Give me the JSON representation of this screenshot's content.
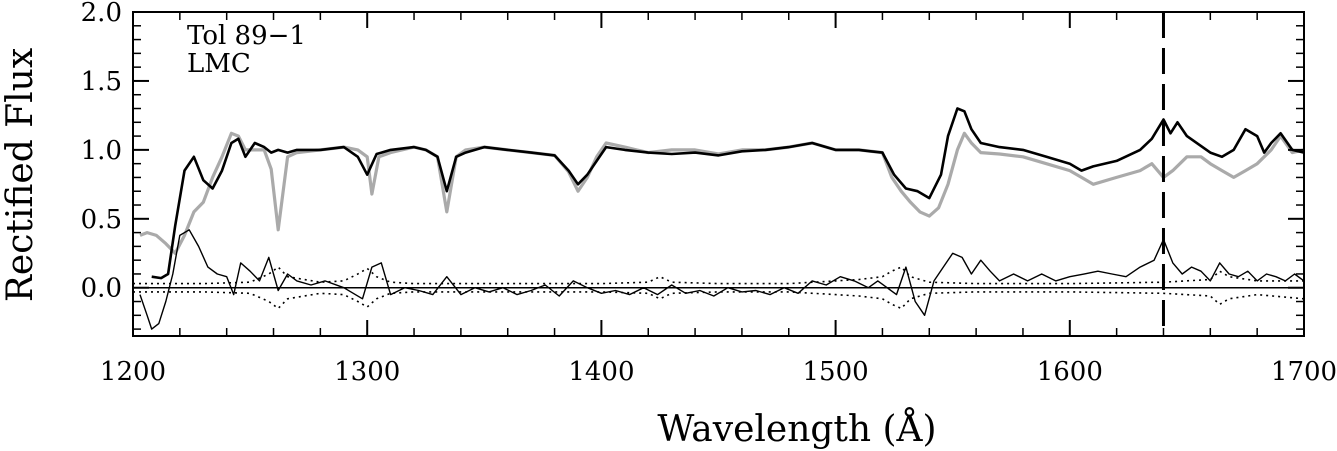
{
  "chart_data": {
    "type": "line",
    "xlabel": "Wavelength (Å)",
    "ylabel": "Rectified Flux",
    "xlim": [
      1200,
      1700
    ],
    "ylim": [
      -0.35,
      2.0
    ],
    "x_ticks": [
      "1200",
      "1300",
      "1400",
      "1500",
      "1600",
      "1700"
    ],
    "y_ticks": [
      "0.0",
      "0.5",
      "1.0",
      "1.5",
      "2.0"
    ],
    "annotations": [
      "Tol 89−1",
      "LMC"
    ],
    "reference_line_x": 1640,
    "colors": {
      "object": "#000000",
      "template": "#aaaaaa",
      "residual": "#000000"
    },
    "series": [
      {
        "key": "object",
        "style": "thick-black",
        "x": [
          1208,
          1212,
          1215,
          1218,
          1222,
          1226,
          1230,
          1234,
          1238,
          1242,
          1245,
          1248,
          1252,
          1256,
          1259,
          1262,
          1266,
          1270,
          1280,
          1290,
          1296,
          1300,
          1304,
          1310,
          1320,
          1325,
          1330,
          1334,
          1338,
          1342,
          1350,
          1360,
          1370,
          1380,
          1386,
          1390,
          1394,
          1398,
          1402,
          1410,
          1420,
          1430,
          1440,
          1450,
          1460,
          1470,
          1480,
          1490,
          1500,
          1510,
          1515,
          1520,
          1525,
          1530,
          1535,
          1540,
          1545,
          1548,
          1552,
          1555,
          1558,
          1562,
          1570,
          1580,
          1590,
          1600,
          1605,
          1610,
          1620,
          1630,
          1635,
          1640,
          1643,
          1646,
          1650,
          1660,
          1665,
          1670,
          1675,
          1680,
          1683,
          1686,
          1690,
          1695,
          1700
        ],
        "y": [
          0.08,
          0.07,
          0.1,
          0.45,
          0.85,
          0.95,
          0.78,
          0.72,
          0.85,
          1.05,
          1.08,
          0.95,
          1.05,
          1.02,
          0.98,
          1.0,
          0.98,
          1.0,
          1.0,
          1.02,
          0.95,
          0.82,
          0.97,
          1.0,
          1.02,
          1.0,
          0.95,
          0.7,
          0.95,
          0.98,
          1.02,
          1.0,
          0.98,
          0.96,
          0.85,
          0.75,
          0.82,
          0.92,
          1.02,
          1.0,
          0.98,
          0.97,
          0.98,
          0.96,
          0.99,
          1.0,
          1.02,
          1.05,
          1.0,
          1.0,
          0.99,
          0.98,
          0.82,
          0.72,
          0.7,
          0.65,
          0.82,
          1.1,
          1.3,
          1.28,
          1.15,
          1.05,
          1.02,
          1.0,
          0.95,
          0.9,
          0.85,
          0.88,
          0.92,
          1.0,
          1.08,
          1.22,
          1.12,
          1.2,
          1.1,
          0.98,
          0.95,
          1.0,
          1.15,
          1.1,
          0.98,
          1.05,
          1.12,
          1.0,
          0.98
        ]
      },
      {
        "key": "template",
        "style": "thick-gray",
        "x": [
          1203,
          1206,
          1210,
          1214,
          1218,
          1222,
          1226,
          1230,
          1234,
          1238,
          1242,
          1245,
          1248,
          1252,
          1256,
          1259,
          1262,
          1266,
          1270,
          1280,
          1290,
          1296,
          1300,
          1302,
          1305,
          1310,
          1320,
          1325,
          1330,
          1334,
          1338,
          1342,
          1350,
          1360,
          1370,
          1380,
          1386,
          1390,
          1394,
          1398,
          1402,
          1410,
          1420,
          1430,
          1440,
          1450,
          1460,
          1470,
          1480,
          1490,
          1500,
          1510,
          1520,
          1524,
          1528,
          1532,
          1536,
          1540,
          1544,
          1548,
          1552,
          1555,
          1558,
          1562,
          1570,
          1580,
          1590,
          1600,
          1605,
          1610,
          1620,
          1630,
          1635,
          1640,
          1644,
          1650,
          1656,
          1660,
          1665,
          1670,
          1675,
          1680,
          1686,
          1690,
          1695,
          1700
        ],
        "y": [
          0.38,
          0.4,
          0.38,
          0.32,
          0.25,
          0.38,
          0.55,
          0.62,
          0.8,
          0.95,
          1.12,
          1.1,
          1.0,
          1.0,
          1.0,
          0.86,
          0.42,
          0.95,
          0.98,
          1.0,
          1.02,
          1.0,
          0.95,
          0.68,
          0.95,
          0.98,
          1.02,
          1.0,
          0.95,
          0.55,
          0.95,
          1.0,
          1.02,
          1.0,
          0.98,
          0.96,
          0.84,
          0.7,
          0.8,
          0.95,
          1.05,
          1.02,
          0.98,
          1.0,
          1.0,
          0.97,
          1.0,
          1.0,
          1.02,
          1.05,
          1.0,
          1.0,
          0.98,
          0.8,
          0.7,
          0.62,
          0.55,
          0.52,
          0.58,
          0.75,
          1.0,
          1.12,
          1.05,
          0.98,
          0.97,
          0.95,
          0.9,
          0.85,
          0.8,
          0.75,
          0.8,
          0.85,
          0.9,
          0.8,
          0.85,
          0.95,
          0.95,
          0.9,
          0.85,
          0.8,
          0.85,
          0.9,
          1.0,
          1.1,
          0.98,
          1.0
        ]
      },
      {
        "key": "residual",
        "style": "thin-black",
        "x": [
          1203,
          1206,
          1208,
          1211,
          1214,
          1217,
          1220,
          1224,
          1228,
          1232,
          1236,
          1240,
          1243,
          1246,
          1250,
          1254,
          1258,
          1262,
          1266,
          1270,
          1276,
          1282,
          1290,
          1298,
          1302,
          1306,
          1310,
          1316,
          1322,
          1328,
          1334,
          1340,
          1346,
          1352,
          1358,
          1364,
          1370,
          1376,
          1382,
          1388,
          1394,
          1400,
          1406,
          1412,
          1418,
          1424,
          1430,
          1436,
          1442,
          1448,
          1454,
          1460,
          1466,
          1472,
          1478,
          1484,
          1490,
          1496,
          1502,
          1508,
          1514,
          1518,
          1522,
          1526,
          1530,
          1534,
          1538,
          1542,
          1546,
          1550,
          1554,
          1558,
          1562,
          1566,
          1570,
          1576,
          1582,
          1588,
          1594,
          1600,
          1606,
          1612,
          1618,
          1624,
          1630,
          1636,
          1640,
          1644,
          1648,
          1652,
          1656,
          1660,
          1664,
          1668,
          1672,
          1676,
          1680,
          1684,
          1688,
          1692,
          1696,
          1700
        ],
        "y": [
          -0.05,
          -0.2,
          -0.3,
          -0.26,
          -0.1,
          0.1,
          0.38,
          0.42,
          0.3,
          0.15,
          0.1,
          0.08,
          -0.05,
          0.18,
          0.12,
          0.05,
          0.22,
          -0.02,
          0.1,
          0.05,
          0.02,
          0.05,
          0.0,
          -0.08,
          0.15,
          0.18,
          -0.05,
          0.0,
          -0.02,
          -0.05,
          0.08,
          -0.05,
          0.0,
          -0.03,
          0.0,
          -0.05,
          -0.02,
          0.02,
          -0.06,
          0.05,
          0.0,
          -0.04,
          -0.02,
          -0.05,
          0.0,
          -0.05,
          0.02,
          -0.04,
          -0.02,
          -0.06,
          0.0,
          -0.03,
          -0.02,
          -0.05,
          0.0,
          -0.04,
          0.05,
          0.02,
          0.08,
          0.05,
          0.0,
          0.05,
          0.0,
          -0.05,
          0.15,
          -0.1,
          -0.2,
          0.05,
          0.15,
          0.25,
          0.22,
          0.1,
          0.2,
          0.12,
          0.05,
          0.1,
          0.05,
          0.1,
          0.05,
          0.08,
          0.1,
          0.12,
          0.1,
          0.08,
          0.15,
          0.2,
          0.35,
          0.18,
          0.1,
          0.15,
          0.12,
          0.05,
          0.18,
          0.1,
          0.08,
          0.12,
          0.05,
          0.1,
          0.08,
          0.05,
          0.1,
          0.05
        ]
      },
      {
        "key": "sigma_upper",
        "style": "dotted",
        "x": [
          1200,
          1230,
          1250,
          1258,
          1262,
          1266,
          1280,
          1290,
          1296,
          1300,
          1304,
          1310,
          1320,
          1350,
          1400,
          1420,
          1425,
          1430,
          1450,
          1480,
          1500,
          1510,
          1520,
          1524,
          1528,
          1532,
          1540,
          1560,
          1600,
          1640,
          1660,
          1664,
          1668,
          1680,
          1700
        ],
        "y": [
          0.03,
          0.03,
          0.04,
          0.1,
          0.15,
          0.08,
          0.04,
          0.05,
          0.1,
          0.14,
          0.08,
          0.04,
          0.03,
          0.03,
          0.03,
          0.04,
          0.08,
          0.04,
          0.03,
          0.03,
          0.05,
          0.06,
          0.08,
          0.12,
          0.15,
          0.08,
          0.04,
          0.03,
          0.03,
          0.04,
          0.06,
          0.12,
          0.08,
          0.05,
          0.05
        ]
      },
      {
        "key": "sigma_lower",
        "style": "dotted",
        "x": [
          1200,
          1230,
          1250,
          1258,
          1262,
          1266,
          1280,
          1290,
          1296,
          1300,
          1304,
          1310,
          1320,
          1350,
          1400,
          1420,
          1425,
          1430,
          1450,
          1480,
          1500,
          1510,
          1520,
          1524,
          1528,
          1532,
          1540,
          1560,
          1600,
          1640,
          1660,
          1664,
          1668,
          1680,
          1700
        ],
        "y": [
          -0.03,
          -0.03,
          -0.04,
          -0.1,
          -0.15,
          -0.08,
          -0.04,
          -0.05,
          -0.1,
          -0.14,
          -0.08,
          -0.04,
          -0.03,
          -0.03,
          -0.03,
          -0.04,
          -0.08,
          -0.04,
          -0.03,
          -0.03,
          -0.05,
          -0.06,
          -0.08,
          -0.12,
          -0.15,
          -0.08,
          -0.04,
          -0.03,
          -0.03,
          -0.04,
          -0.06,
          -0.12,
          -0.08,
          -0.05,
          -0.08
        ]
      }
    ]
  }
}
